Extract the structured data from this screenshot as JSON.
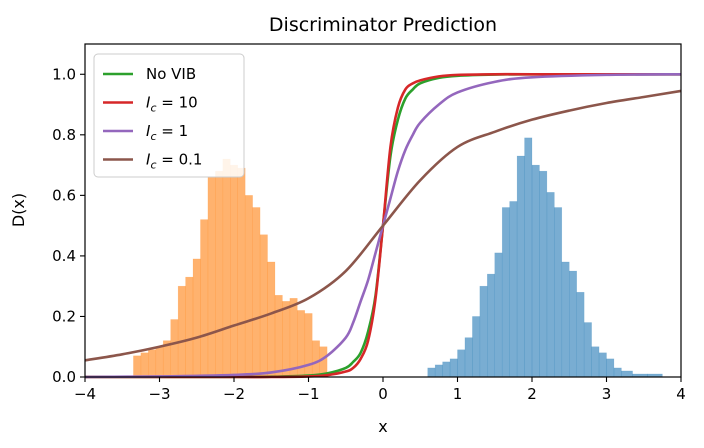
{
  "chart_data": {
    "type": "line",
    "title": "Discriminator Prediction",
    "xlabel": "x",
    "ylabel": "D(x)",
    "xlim": [
      -4,
      4
    ],
    "ylim": [
      0.0,
      1.1
    ],
    "xticks": [
      -4,
      -3,
      -2,
      -1,
      0,
      1,
      2,
      3,
      4
    ],
    "xtick_labels": [
      "−4",
      "−3",
      "−2",
      "−1",
      "0",
      "1",
      "2",
      "3",
      "4"
    ],
    "yticks": [
      0.0,
      0.2,
      0.4,
      0.6,
      0.8,
      1.0
    ],
    "ytick_labels": [
      "0.0",
      "0.2",
      "0.4",
      "0.6",
      "0.8",
      "1.0"
    ],
    "grid": false,
    "legend_position": "top-left",
    "series": [
      {
        "name": "No VIB",
        "color": "#2ca02c",
        "x": [
          -4,
          -3,
          -2,
          -1.5,
          -1,
          -0.75,
          -0.5,
          -0.4,
          -0.3,
          -0.2,
          -0.1,
          0,
          0.1,
          0.2,
          0.3,
          0.4,
          0.5,
          0.75,
          1,
          1.5,
          2,
          3,
          4
        ],
        "y": [
          0.0,
          0.0,
          0.0,
          0.001,
          0.005,
          0.012,
          0.03,
          0.05,
          0.08,
          0.15,
          0.27,
          0.5,
          0.73,
          0.85,
          0.92,
          0.95,
          0.97,
          0.988,
          0.995,
          0.999,
          1.0,
          1.0,
          1.0
        ]
      },
      {
        "name": "I_c = 10",
        "label_base": "I",
        "label_sub": "c",
        "label_rest": " = 10",
        "color": "#d62728",
        "x": [
          -4,
          -3,
          -2,
          -1.5,
          -1,
          -0.75,
          -0.5,
          -0.4,
          -0.3,
          -0.2,
          -0.1,
          0,
          0.1,
          0.2,
          0.3,
          0.4,
          0.5,
          0.75,
          1,
          1.5,
          2,
          3,
          4
        ],
        "y": [
          0.0,
          0.0,
          0.0,
          0.0,
          0.002,
          0.006,
          0.018,
          0.03,
          0.06,
          0.12,
          0.26,
          0.5,
          0.76,
          0.89,
          0.95,
          0.97,
          0.98,
          0.993,
          0.998,
          1.0,
          1.0,
          1.0,
          1.0
        ]
      },
      {
        "name": "I_c = 1",
        "label_base": "I",
        "label_sub": "c",
        "label_rest": " = 1",
        "color": "#9467bd",
        "x": [
          -4,
          -3,
          -2,
          -1.5,
          -1,
          -0.75,
          -0.5,
          -0.4,
          -0.3,
          -0.2,
          -0.1,
          0,
          0.1,
          0.2,
          0.3,
          0.4,
          0.5,
          0.75,
          1,
          1.5,
          2,
          3,
          4
        ],
        "y": [
          0.0,
          0.002,
          0.007,
          0.015,
          0.04,
          0.07,
          0.13,
          0.18,
          0.25,
          0.32,
          0.41,
          0.5,
          0.59,
          0.68,
          0.75,
          0.8,
          0.84,
          0.9,
          0.94,
          0.975,
          0.99,
          0.998,
          1.0
        ]
      },
      {
        "name": "I_c = 0.1",
        "label_base": "I",
        "label_sub": "c",
        "label_rest": " = 0.1",
        "color": "#8c564b",
        "x": [
          -4,
          -3.5,
          -3,
          -2.5,
          -2,
          -1.5,
          -1,
          -0.5,
          0,
          0.5,
          1,
          1.5,
          2,
          2.5,
          3,
          3.5,
          4
        ],
        "y": [
          0.055,
          0.075,
          0.1,
          0.13,
          0.17,
          0.21,
          0.26,
          0.35,
          0.5,
          0.65,
          0.76,
          0.81,
          0.85,
          0.88,
          0.905,
          0.925,
          0.945
        ]
      }
    ],
    "histograms": [
      {
        "color": "#ff7f0e",
        "opacity": 0.6,
        "bins": [
          {
            "x0": -3.35,
            "x1": -3.25,
            "y": 0.07
          },
          {
            "x0": -3.25,
            "x1": -3.15,
            "y": 0.08
          },
          {
            "x0": -3.15,
            "x1": -3.05,
            "y": 0.09
          },
          {
            "x0": -3.05,
            "x1": -2.95,
            "y": 0.1
          },
          {
            "x0": -2.95,
            "x1": -2.85,
            "y": 0.12
          },
          {
            "x0": -2.85,
            "x1": -2.75,
            "y": 0.19
          },
          {
            "x0": -2.75,
            "x1": -2.65,
            "y": 0.3
          },
          {
            "x0": -2.65,
            "x1": -2.55,
            "y": 0.33
          },
          {
            "x0": -2.55,
            "x1": -2.45,
            "y": 0.39
          },
          {
            "x0": -2.45,
            "x1": -2.35,
            "y": 0.52
          },
          {
            "x0": -2.35,
            "x1": -2.25,
            "y": 0.66
          },
          {
            "x0": -2.25,
            "x1": -2.15,
            "y": 0.68
          },
          {
            "x0": -2.15,
            "x1": -2.05,
            "y": 0.72
          },
          {
            "x0": -2.05,
            "x1": -1.95,
            "y": 0.7
          },
          {
            "x0": -1.95,
            "x1": -1.85,
            "y": 0.69
          },
          {
            "x0": -1.85,
            "x1": -1.75,
            "y": 0.6
          },
          {
            "x0": -1.75,
            "x1": -1.65,
            "y": 0.56
          },
          {
            "x0": -1.65,
            "x1": -1.55,
            "y": 0.47
          },
          {
            "x0": -1.55,
            "x1": -1.45,
            "y": 0.38
          },
          {
            "x0": -1.45,
            "x1": -1.35,
            "y": 0.27
          },
          {
            "x0": -1.35,
            "x1": -1.25,
            "y": 0.25
          },
          {
            "x0": -1.25,
            "x1": -1.15,
            "y": 0.26
          },
          {
            "x0": -1.15,
            "x1": -1.05,
            "y": 0.22
          },
          {
            "x0": -1.05,
            "x1": -0.95,
            "y": 0.21
          },
          {
            "x0": -0.95,
            "x1": -0.85,
            "y": 0.12
          },
          {
            "x0": -0.85,
            "x1": -0.75,
            "y": 0.1
          }
        ]
      },
      {
        "color": "#1f77b4",
        "opacity": 0.6,
        "bins": [
          {
            "x0": 0.6,
            "x1": 0.7,
            "y": 0.03
          },
          {
            "x0": 0.7,
            "x1": 0.8,
            "y": 0.04
          },
          {
            "x0": 0.8,
            "x1": 0.9,
            "y": 0.05
          },
          {
            "x0": 0.9,
            "x1": 1.0,
            "y": 0.06
          },
          {
            "x0": 1.0,
            "x1": 1.1,
            "y": 0.09
          },
          {
            "x0": 1.1,
            "x1": 1.2,
            "y": 0.13
          },
          {
            "x0": 1.2,
            "x1": 1.3,
            "y": 0.2
          },
          {
            "x0": 1.3,
            "x1": 1.4,
            "y": 0.3
          },
          {
            "x0": 1.4,
            "x1": 1.5,
            "y": 0.34
          },
          {
            "x0": 1.5,
            "x1": 1.6,
            "y": 0.41
          },
          {
            "x0": 1.6,
            "x1": 1.7,
            "y": 0.56
          },
          {
            "x0": 1.7,
            "x1": 1.8,
            "y": 0.58
          },
          {
            "x0": 1.8,
            "x1": 1.9,
            "y": 0.73
          },
          {
            "x0": 1.9,
            "x1": 2.0,
            "y": 0.79
          },
          {
            "x0": 2.0,
            "x1": 2.1,
            "y": 0.7
          },
          {
            "x0": 2.1,
            "x1": 2.2,
            "y": 0.68
          },
          {
            "x0": 2.2,
            "x1": 2.3,
            "y": 0.61
          },
          {
            "x0": 2.3,
            "x1": 2.4,
            "y": 0.56
          },
          {
            "x0": 2.4,
            "x1": 2.5,
            "y": 0.38
          },
          {
            "x0": 2.5,
            "x1": 2.6,
            "y": 0.35
          },
          {
            "x0": 2.6,
            "x1": 2.7,
            "y": 0.28
          },
          {
            "x0": 2.7,
            "x1": 2.8,
            "y": 0.18
          },
          {
            "x0": 2.8,
            "x1": 2.9,
            "y": 0.1
          },
          {
            "x0": 2.9,
            "x1": 3.0,
            "y": 0.08
          },
          {
            "x0": 3.0,
            "x1": 3.1,
            "y": 0.06
          },
          {
            "x0": 3.1,
            "x1": 3.2,
            "y": 0.03
          },
          {
            "x0": 3.2,
            "x1": 3.35,
            "y": 0.02
          },
          {
            "x0": 3.35,
            "x1": 3.55,
            "y": 0.01
          },
          {
            "x0": 3.55,
            "x1": 3.75,
            "y": 0.01
          }
        ]
      }
    ]
  }
}
